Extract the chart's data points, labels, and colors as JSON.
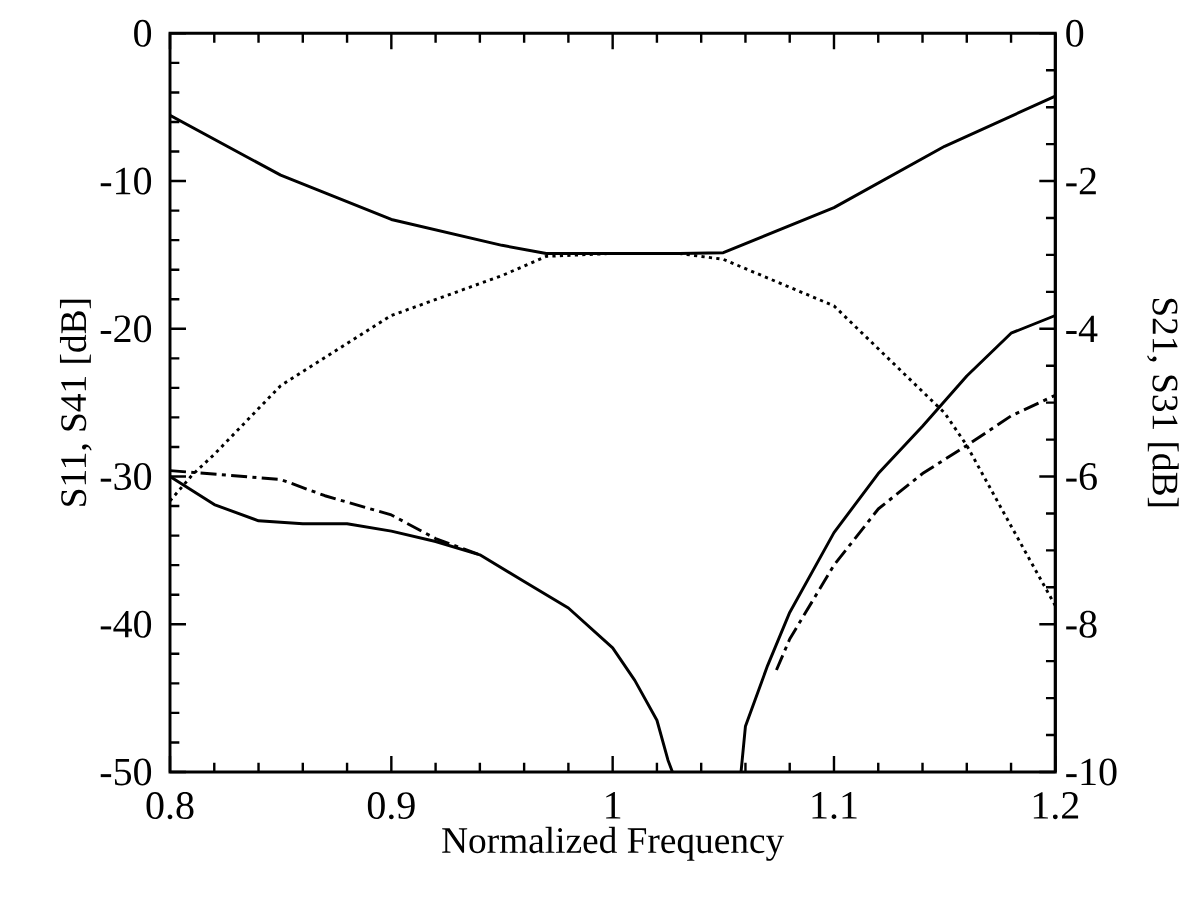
{
  "chart_data": {
    "type": "line",
    "xlabel": "Normalized Frequency",
    "ylabel": "S11, S41 [dB]",
    "y2label": "S21, S31 [dB]",
    "xlim": [
      0.8,
      1.2
    ],
    "xticks": [
      0.8,
      0.9,
      1,
      1.1,
      1.2
    ],
    "ylim": [
      -50,
      0
    ],
    "yticks": [
      -50,
      -40,
      -30,
      -20,
      -10,
      0
    ],
    "y2lim": [
      -10,
      0
    ],
    "y2ticks": [
      -10,
      -8,
      -6,
      -4,
      -2,
      0
    ],
    "grid": false,
    "marker": "none",
    "series": [
      {
        "color": "#000000",
        "line_style": "solid",
        "x": [
          0.8,
          0.82,
          0.84,
          0.86,
          0.88,
          0.9,
          0.92,
          0.94,
          0.96,
          0.98,
          1.0,
          1.01,
          1.02,
          1.025,
          1.027,
          1.04,
          1.058,
          1.06,
          1.07,
          1.08,
          1.1,
          1.12,
          1.14,
          1.16,
          1.18,
          1.2
        ],
        "values": [
          -30,
          -31.9,
          -33,
          -33.2,
          -33.2,
          -33.7,
          -34.4,
          -35.3,
          -37.1,
          -38.9,
          -41.6,
          -43.8,
          -46.5,
          -49.2,
          -50,
          null,
          -50,
          -46.9,
          -42.8,
          -39.2,
          -33.8,
          -29.8,
          -26.6,
          -23.2,
          -20.3,
          -19.1
        ]
      },
      {
        "color": "#000000",
        "line_style": "dashed",
        "x": [
          0.8,
          0.85,
          0.87,
          0.9,
          0.92,
          0.94,
          1.04,
          1.074,
          1.08,
          1.1,
          1.12,
          1.14,
          1.16,
          1.18,
          1.2
        ],
        "values": [
          -29.6,
          -30.2,
          -31.3,
          -32.6,
          -34.2,
          -35.3,
          null,
          -43.1,
          -41,
          -36,
          -32.2,
          -29.8,
          -27.9,
          -25.9,
          -24.5
        ]
      },
      {
        "color": "#000000",
        "line_style": "solid",
        "axis": "y2",
        "x": [
          0.8,
          0.85,
          0.9,
          0.95,
          0.97,
          1.0,
          1.03,
          1.05,
          1.1,
          1.15,
          1.2
        ],
        "values": [
          -1.11,
          -1.92,
          -2.52,
          -2.87,
          -2.98,
          -2.98,
          -2.98,
          -2.97,
          -2.36,
          -1.53,
          -0.85
        ]
      },
      {
        "color": "#000000",
        "line_style": "dotted",
        "axis": "y2",
        "x": [
          0.8,
          0.81,
          0.82,
          0.85,
          0.9,
          0.95,
          0.97,
          1.0,
          1.03,
          1.05,
          1.1,
          1.15,
          1.16,
          1.18,
          1.2
        ],
        "values": [
          -6.33,
          -5.98,
          -5.7,
          -4.77,
          -3.82,
          -3.28,
          -3.02,
          -2.98,
          -2.98,
          -3.06,
          -3.69,
          -5.14,
          -5.58,
          -6.67,
          -7.75
        ]
      }
    ]
  }
}
